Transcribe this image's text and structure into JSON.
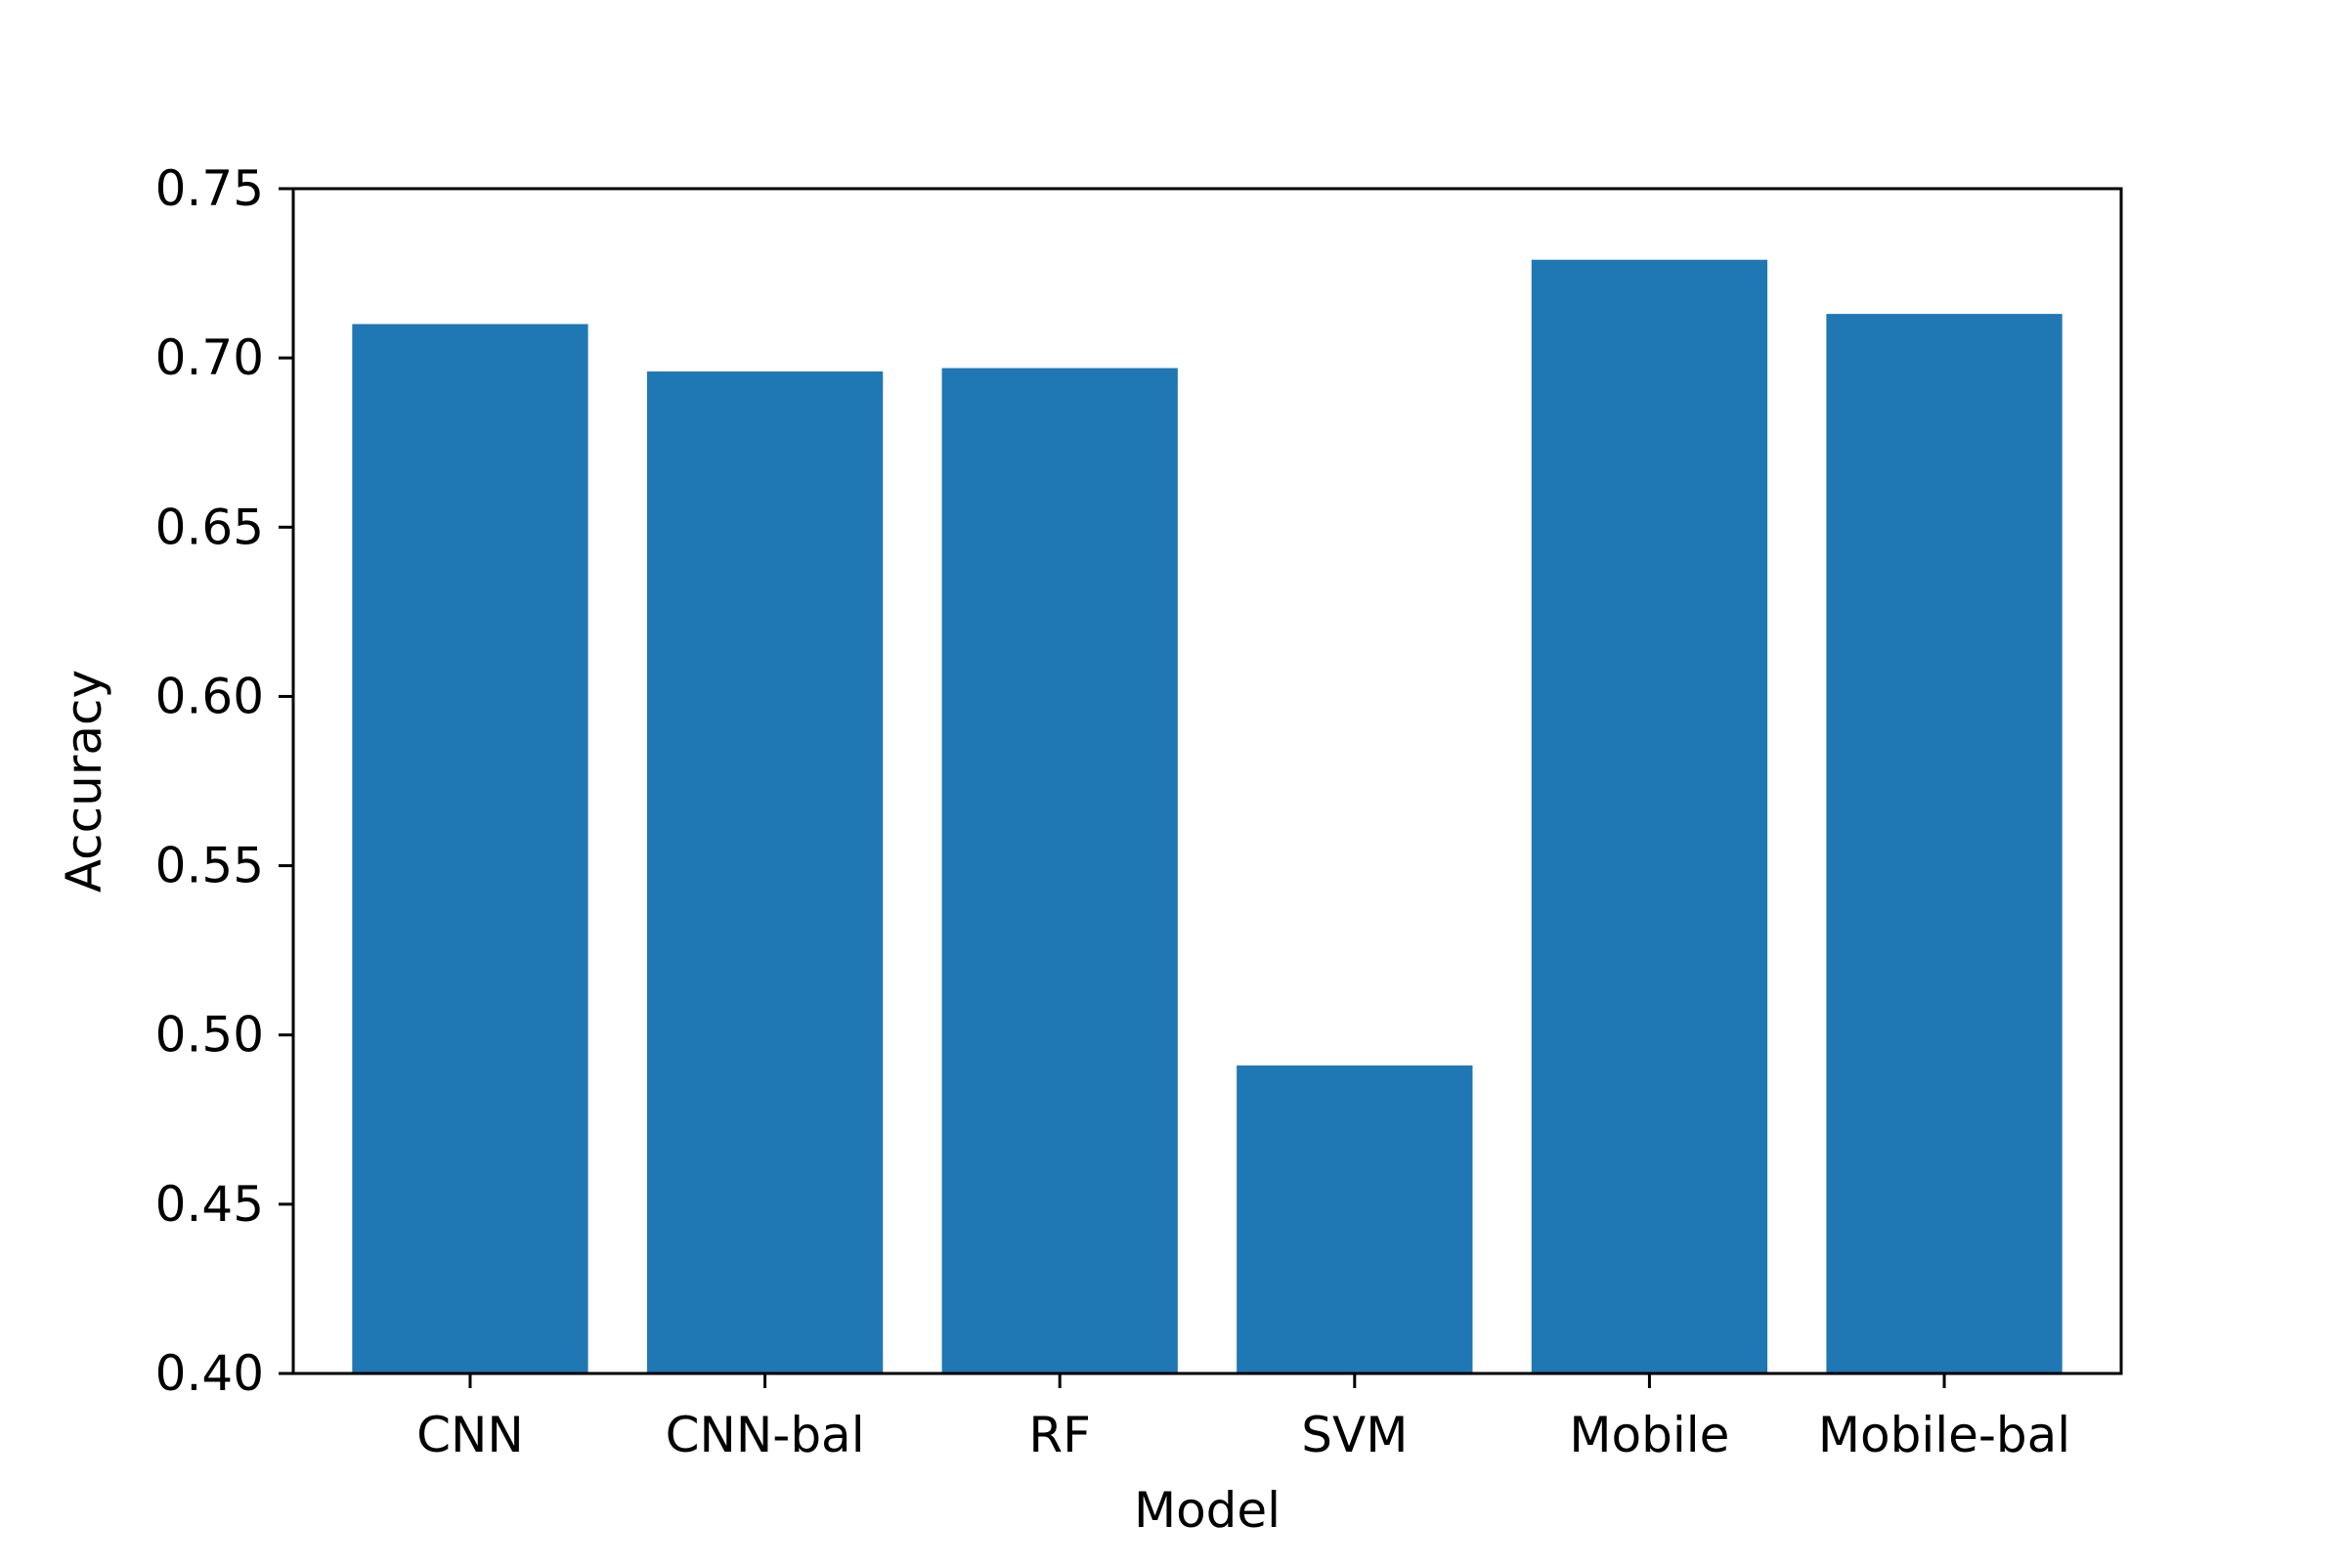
{
  "chart_data": {
    "type": "bar",
    "categories": [
      "CNN",
      "CNN-bal",
      "RF",
      "SVM",
      "Mobile",
      "Mobile-bal"
    ],
    "values": [
      0.71,
      0.696,
      0.697,
      0.491,
      0.729,
      0.713
    ],
    "xlabel": "Model",
    "ylabel": "Accuracy",
    "ylim": [
      0.4,
      0.75
    ],
    "yticks": [
      "0.40",
      "0.45",
      "0.50",
      "0.55",
      "0.60",
      "0.65",
      "0.70",
      "0.75"
    ],
    "grid": false,
    "legend": false,
    "bar_color": "#1f77b4"
  }
}
